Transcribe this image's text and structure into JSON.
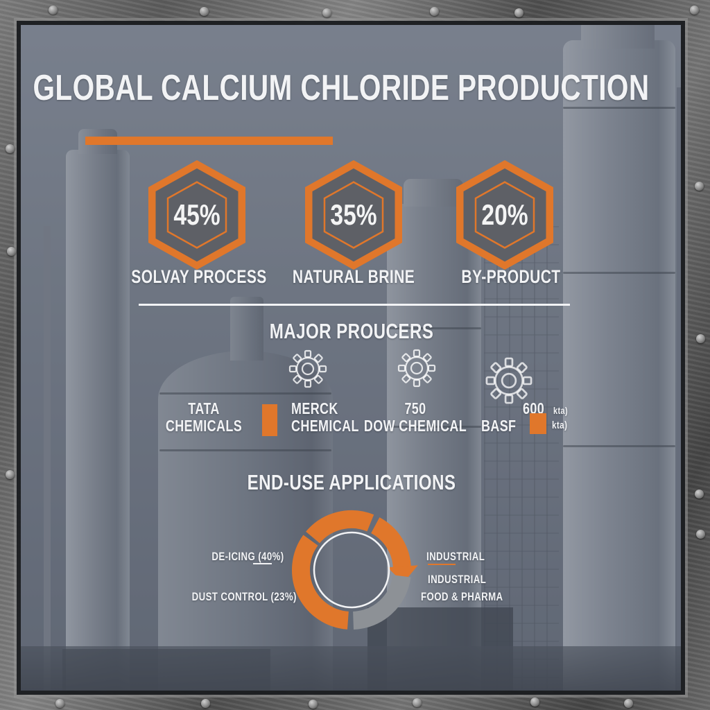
{
  "title": {
    "text": "GLOBAL CALCIUM CHLORIDE PRODUCTION"
  },
  "colors": {
    "accent": "#E0772B",
    "ring_gray": "#8D9196",
    "text": "#F2F3F5"
  },
  "hex_stats": {
    "items": [
      {
        "value": "45%",
        "label": "SOLVAY PROCESS"
      },
      {
        "value": "35%",
        "label": "NATURAL BRINE"
      },
      {
        "value": "20%",
        "label": "BY-PRODUCT"
      }
    ]
  },
  "producers": {
    "heading": "MAJOR PROUCERS",
    "tata": {
      "line1": "TATA",
      "line2": "CHEMICALS"
    },
    "merck": {
      "line1": "MERCK",
      "line2": "CHEMICAL"
    },
    "dow": {
      "value": "750",
      "name": "DOW CHEMICAL"
    },
    "basf": {
      "name": "BASF"
    },
    "capacity": {
      "value": "600",
      "unit": "kta)",
      "unit2": "kta)"
    }
  },
  "applications": {
    "heading": "END-USE APPLICATIONS",
    "left_labels": [
      "DE-ICING (40%)",
      "DUST CONTROL (23%)"
    ],
    "right_labels": [
      "INDUSTRIAL",
      "INDUSTRIAL",
      "FOOD & PHARMA"
    ]
  },
  "chart_data": [
    {
      "type": "pie",
      "variant": "hexagon-badges",
      "title": "GLOBAL CALCIUM CHLORIDE PRODUCTION",
      "categories": [
        "SOLVAY PROCESS",
        "NATURAL BRINE",
        "BY-PRODUCT"
      ],
      "values": [
        45,
        35,
        20
      ],
      "unit": "%"
    },
    {
      "type": "pie",
      "variant": "donut-arrow-ring",
      "title": "END-USE APPLICATIONS",
      "categories": [
        "DE-ICING",
        "DUST CONTROL",
        "INDUSTRIAL",
        "INDUSTRIAL",
        "FOOD & PHARMA"
      ],
      "values": [
        40,
        23,
        null,
        null,
        null
      ],
      "legend_position": "sides",
      "ring": {
        "outer_radius": 86,
        "thickness": 26,
        "inner_circle_radius": 54,
        "segments": [
          {
            "start_deg": 310,
            "end_deg": 382,
            "color": "#E0772B"
          },
          {
            "start_deg": 28,
            "end_deg": 88,
            "color": "#E0772B",
            "arrow": true,
            "arrow_tip_deg": 104
          },
          {
            "start_deg": 97,
            "end_deg": 178,
            "color": "#8D9196"
          },
          {
            "start_deg": 184,
            "end_deg": 306,
            "color": "#E0772B"
          }
        ]
      }
    }
  ]
}
